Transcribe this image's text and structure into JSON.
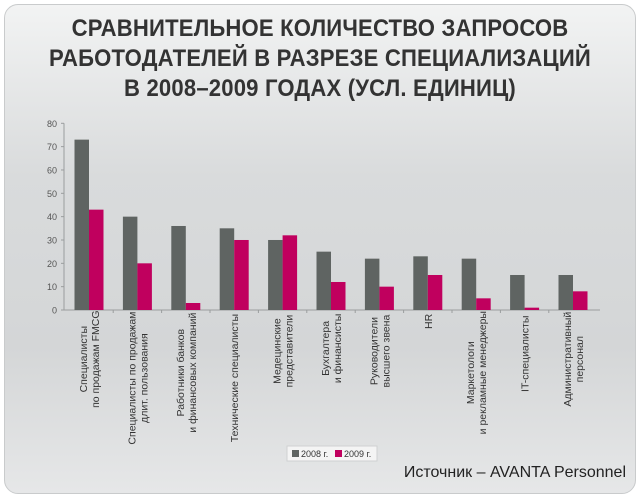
{
  "title_lines": [
    "СРАВНИТЕЛЬНОЕ КОЛИЧЕСТВО ЗАПРОСОВ",
    "РАБОТОДАТЕЛЕЙ В РАЗРЕЗЕ СПЕЦИАЛИЗАЦИЙ",
    "В 2008–2009 ГОДАХ (УСЛ. ЕДИНИЦ)"
  ],
  "source": "Источник – AVANTA Personnel",
  "chart_data": {
    "type": "bar",
    "title": "СРАВНИТЕЛЬНОЕ КОЛИЧЕСТВО ЗАПРОСОВ РАБОТОДАТЕЛЕЙ В РАЗРЕЗЕ СПЕЦИАЛИЗАЦИЙ В 2008–2009 ГОДАХ (УСЛ. ЕДИНИЦ)",
    "categories": [
      [
        "Специалисты",
        "по продажам FMCG"
      ],
      [
        "Специалисты по продажам",
        "длит. пользования"
      ],
      [
        "Работники банков",
        "и финансовых компаний"
      ],
      [
        "Технические специалисты"
      ],
      [
        "Медецинские",
        "представители"
      ],
      [
        "Бухгалтера",
        "и финансисты"
      ],
      [
        "Руководители",
        "высшего звена"
      ],
      [
        "HR"
      ],
      [
        "Маркетологи",
        "и рекламные менеджеры"
      ],
      [
        "IT-специалисты"
      ],
      [
        "Административный",
        "персонал"
      ]
    ],
    "series": [
      {
        "name": "2008 г.",
        "color": "#5f6462",
        "values": [
          73,
          40,
          36,
          35,
          30,
          25,
          22,
          23,
          22,
          15,
          15
        ]
      },
      {
        "name": "2009 г.",
        "color": "#c0005e",
        "values": [
          43,
          20,
          3,
          30,
          32,
          12,
          10,
          15,
          5,
          1,
          8
        ]
      }
    ],
    "ylim": [
      0,
      80
    ],
    "yticks": [
      "0",
      "10",
      "20",
      "30",
      "40",
      "50",
      "60",
      "70",
      "80"
    ],
    "xlabel": "",
    "ylabel": "",
    "grid": false,
    "legend_position": "bottom"
  }
}
